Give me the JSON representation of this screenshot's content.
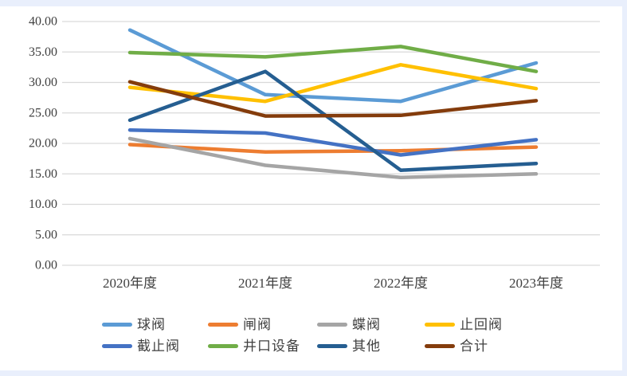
{
  "page": {
    "margin_color": "#e9effc",
    "canvas_color": "#ffffff",
    "gridline_color": "#d9d9d9",
    "axis_text_color": "#404040"
  },
  "chart_data": {
    "type": "line",
    "title": "",
    "xlabel": "",
    "ylabel": "",
    "categories": [
      "2020年度",
      "2021年度",
      "2022年度",
      "2023年度"
    ],
    "series": [
      {
        "name": "球阀",
        "color": "#5B9BD5",
        "values": [
          38.6,
          28.0,
          26.9,
          33.2
        ]
      },
      {
        "name": "闸阀",
        "color": "#ED7D31",
        "values": [
          19.8,
          18.6,
          18.8,
          19.4
        ]
      },
      {
        "name": "蝶阀",
        "color": "#A5A5A5",
        "values": [
          20.8,
          16.4,
          14.4,
          15.0
        ]
      },
      {
        "name": "止回阀",
        "color": "#FFC000",
        "values": [
          29.2,
          26.9,
          32.9,
          29.0
        ]
      },
      {
        "name": "截止阀",
        "color": "#4472C4",
        "values": [
          22.2,
          21.7,
          18.1,
          20.6
        ]
      },
      {
        "name": "井口设备",
        "color": "#70AD47",
        "values": [
          34.9,
          34.2,
          35.9,
          31.8
        ]
      },
      {
        "name": "其他",
        "color": "#255E91",
        "values": [
          23.8,
          31.8,
          15.6,
          16.7
        ]
      },
      {
        "name": "合计",
        "color": "#843C0C",
        "values": [
          30.1,
          24.5,
          24.6,
          27.0
        ]
      }
    ],
    "ylim": [
      0,
      40
    ],
    "ytick_step": 5,
    "ytick_labels": [
      "0.00",
      "5.00",
      "10.00",
      "15.00",
      "20.00",
      "25.00",
      "30.00",
      "35.00",
      "40.00"
    ],
    "grid": true,
    "legend_position": "bottom",
    "legend_rows": [
      [
        "球阀",
        "闸阀",
        "蝶阀",
        "止回阀"
      ],
      [
        "截止阀",
        "井口设备",
        "其他",
        "合计"
      ]
    ]
  }
}
